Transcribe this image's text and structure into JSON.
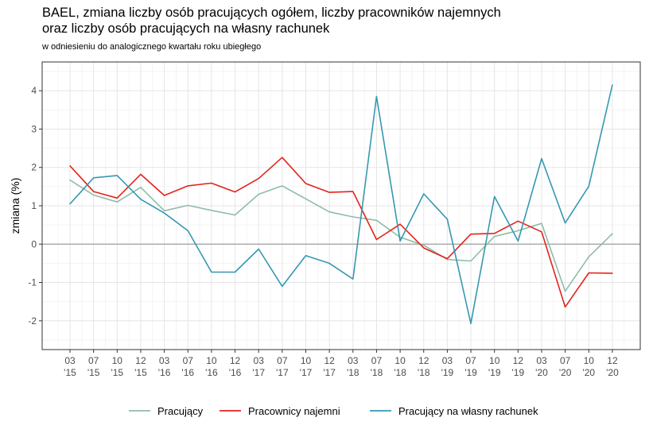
{
  "chart_data": {
    "type": "line",
    "title_line1": "BAEL, zmiana liczby osób pracujących ogółem, liczby pracowników najemnych",
    "title_line2": "oraz liczby osób pracujących na własny rachunek",
    "subtitle": "w odniesieniu do analogicznego kwartału roku ubiegłego",
    "ylabel": "zmiana (%)",
    "xlabel": "",
    "ylim": [
      -2.75,
      4.75
    ],
    "yticks": [
      -2,
      -1,
      0,
      1,
      2,
      3,
      4
    ],
    "grid": true,
    "legend_position": "bottom",
    "categories": [
      {
        "month": "03",
        "year": "'15"
      },
      {
        "month": "07",
        "year": "'15"
      },
      {
        "month": "10",
        "year": "'15"
      },
      {
        "month": "12",
        "year": "'15"
      },
      {
        "month": "03",
        "year": "'16"
      },
      {
        "month": "07",
        "year": "'16"
      },
      {
        "month": "10",
        "year": "'16"
      },
      {
        "month": "12",
        "year": "'16"
      },
      {
        "month": "03",
        "year": "'17"
      },
      {
        "month": "07",
        "year": "'17"
      },
      {
        "month": "10",
        "year": "'17"
      },
      {
        "month": "12",
        "year": "'17"
      },
      {
        "month": "03",
        "year": "'18"
      },
      {
        "month": "07",
        "year": "'18"
      },
      {
        "month": "10",
        "year": "'18"
      },
      {
        "month": "12",
        "year": "'18"
      },
      {
        "month": "03",
        "year": "'19"
      },
      {
        "month": "07",
        "year": "'19"
      },
      {
        "month": "10",
        "year": "'19"
      },
      {
        "month": "12",
        "year": "'19"
      },
      {
        "month": "03",
        "year": "'20"
      },
      {
        "month": "07",
        "year": "'20"
      },
      {
        "month": "10",
        "year": "'20"
      },
      {
        "month": "12",
        "year": "'20"
      }
    ],
    "series": [
      {
        "name": "Pracujący",
        "color": "#8fbca8",
        "values": [
          1.67,
          1.28,
          1.1,
          1.48,
          0.87,
          1.01,
          0.88,
          0.76,
          1.3,
          1.52,
          1.18,
          0.84,
          0.71,
          0.62,
          0.18,
          -0.03,
          -0.4,
          -0.44,
          0.2,
          0.35,
          0.54,
          -1.23,
          -0.33,
          0.27
        ]
      },
      {
        "name": "Pracownicy najemni",
        "color": "#e3231b",
        "values": [
          2.04,
          1.37,
          1.2,
          1.82,
          1.27,
          1.52,
          1.59,
          1.36,
          1.71,
          2.26,
          1.58,
          1.35,
          1.37,
          0.12,
          0.52,
          -0.1,
          -0.38,
          0.26,
          0.28,
          0.6,
          0.32,
          -1.64,
          -0.75,
          -0.76
        ]
      },
      {
        "name": "Pracujący na własny rachunek",
        "color": "#3598b2",
        "values": [
          1.05,
          1.73,
          1.79,
          1.17,
          0.81,
          0.35,
          -0.73,
          -0.73,
          -0.13,
          -1.1,
          -0.3,
          -0.5,
          -0.91,
          3.85,
          0.08,
          1.31,
          0.65,
          -2.07,
          1.24,
          0.08,
          2.23,
          0.55,
          1.51,
          4.15
        ]
      }
    ]
  }
}
